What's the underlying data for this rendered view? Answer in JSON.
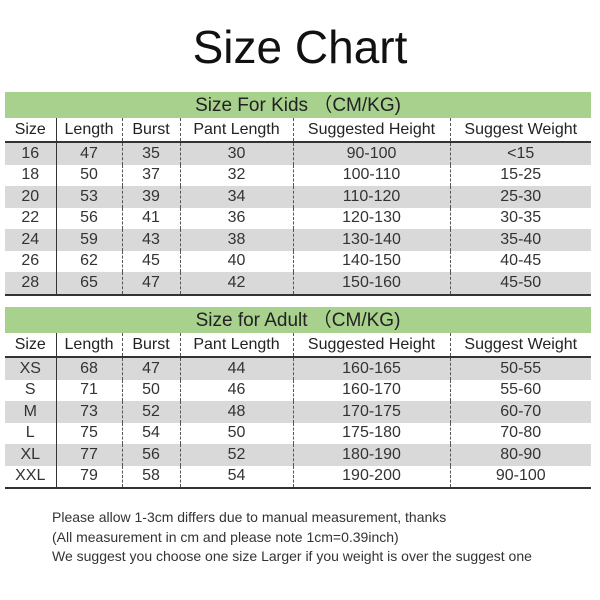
{
  "title": "Size Chart",
  "kids": {
    "caption": "Size For Kids （CM/KG)",
    "headers": [
      "Size",
      "Length",
      "Burst",
      "Pant Length",
      "Suggested Height",
      "Suggest Weight"
    ],
    "rows": [
      [
        "16",
        "47",
        "35",
        "30",
        "90-100",
        "<15"
      ],
      [
        "18",
        "50",
        "37",
        "32",
        "100-110",
        "15-25"
      ],
      [
        "20",
        "53",
        "39",
        "34",
        "110-120",
        "25-30"
      ],
      [
        "22",
        "56",
        "41",
        "36",
        "120-130",
        "30-35"
      ],
      [
        "24",
        "59",
        "43",
        "38",
        "130-140",
        "35-40"
      ],
      [
        "26",
        "62",
        "45",
        "40",
        "140-150",
        "40-45"
      ],
      [
        "28",
        "65",
        "47",
        "42",
        "150-160",
        "45-50"
      ]
    ]
  },
  "adult": {
    "caption": "Size for Adult （CM/KG)",
    "headers": [
      "Size",
      "Length",
      "Burst",
      "Pant Length",
      "Suggested Height",
      "Suggest Weight"
    ],
    "rows": [
      [
        "XS",
        "68",
        "47",
        "44",
        "160-165",
        "50-55"
      ],
      [
        "S",
        "71",
        "50",
        "46",
        "160-170",
        "55-60"
      ],
      [
        "M",
        "73",
        "52",
        "48",
        "170-175",
        "60-70"
      ],
      [
        "L",
        "75",
        "54",
        "50",
        "175-180",
        "70-80"
      ],
      [
        "XL",
        "77",
        "56",
        "52",
        "180-190",
        "80-90"
      ],
      [
        "XXL",
        "79",
        "58",
        "54",
        "190-200",
        "90-100"
      ]
    ]
  },
  "notes": [
    "Please allow 1-3cm differs due to manual measurement, thanks",
    "(All measurement in cm and please note 1cm=0.39inch)",
    "We suggest you choose one size Larger if you weight is over the suggest one"
  ],
  "colors": {
    "band": "#a9d18e",
    "alt_row": "#d9d9d9"
  }
}
